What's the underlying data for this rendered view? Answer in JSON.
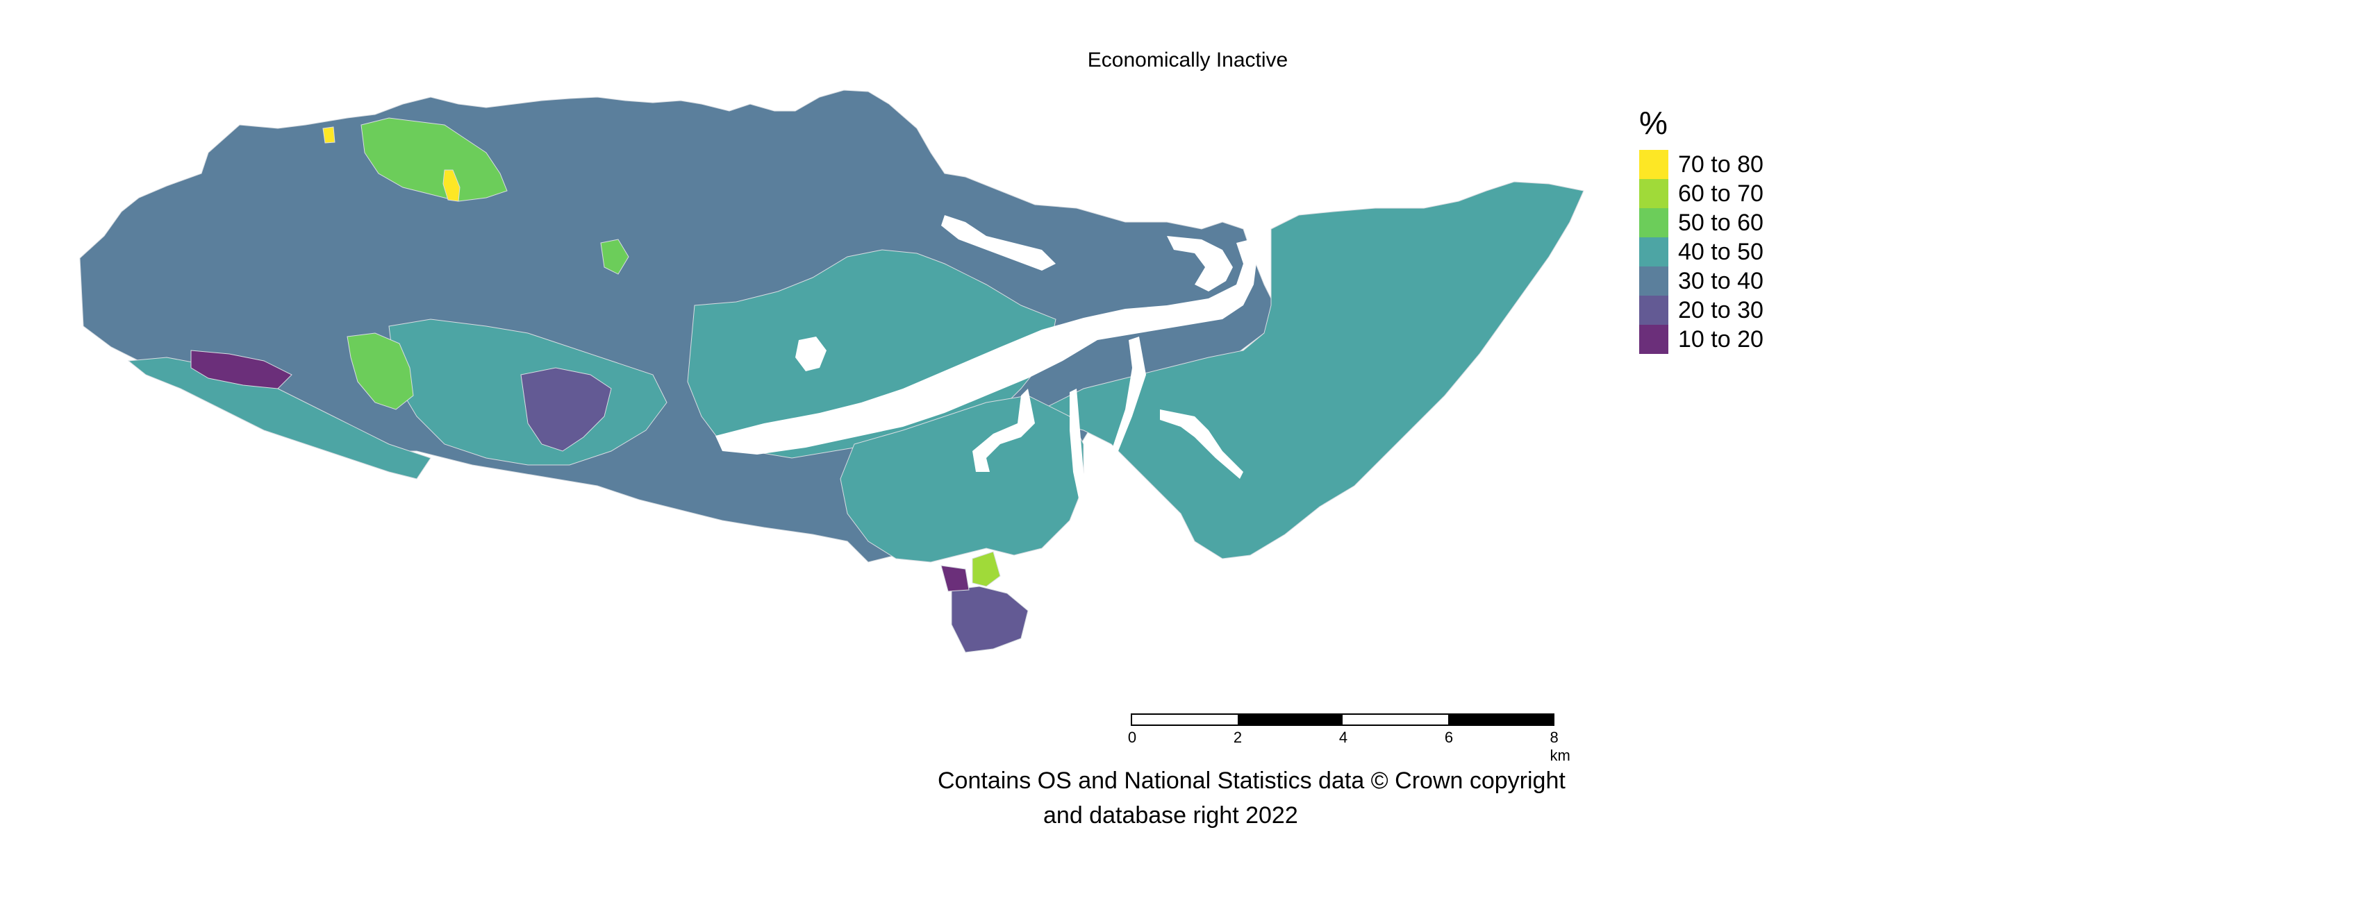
{
  "map": {
    "title": "Economically Inactive",
    "legend": {
      "title": "%",
      "items": [
        {
          "label": "70 to 80",
          "color": "#fde725"
        },
        {
          "label": "60 to 70",
          "color": "#a0da39"
        },
        {
          "label": "50 to 60",
          "color": "#6ccd5a"
        },
        {
          "label": "40 to 50",
          "color": "#4da5a4"
        },
        {
          "label": "30 to 40",
          "color": "#5b7f9c"
        },
        {
          "label": "20 to 30",
          "color": "#635a94"
        },
        {
          "label": "10 to 20",
          "color": "#6b2f7a"
        }
      ]
    },
    "scalebar": {
      "ticks": [
        "0",
        "2",
        "4",
        "6",
        "8 km"
      ],
      "segment_colors": [
        "#ffffff",
        "#000000",
        "#ffffff",
        "#000000"
      ]
    },
    "caption": {
      "line1": "Contains OS and National Statistics data © Crown copyright",
      "line2": "and database right 2022"
    },
    "colors": {
      "water": "#ffffff",
      "boundary": "#d8dde2",
      "background": "#ffffff"
    }
  }
}
